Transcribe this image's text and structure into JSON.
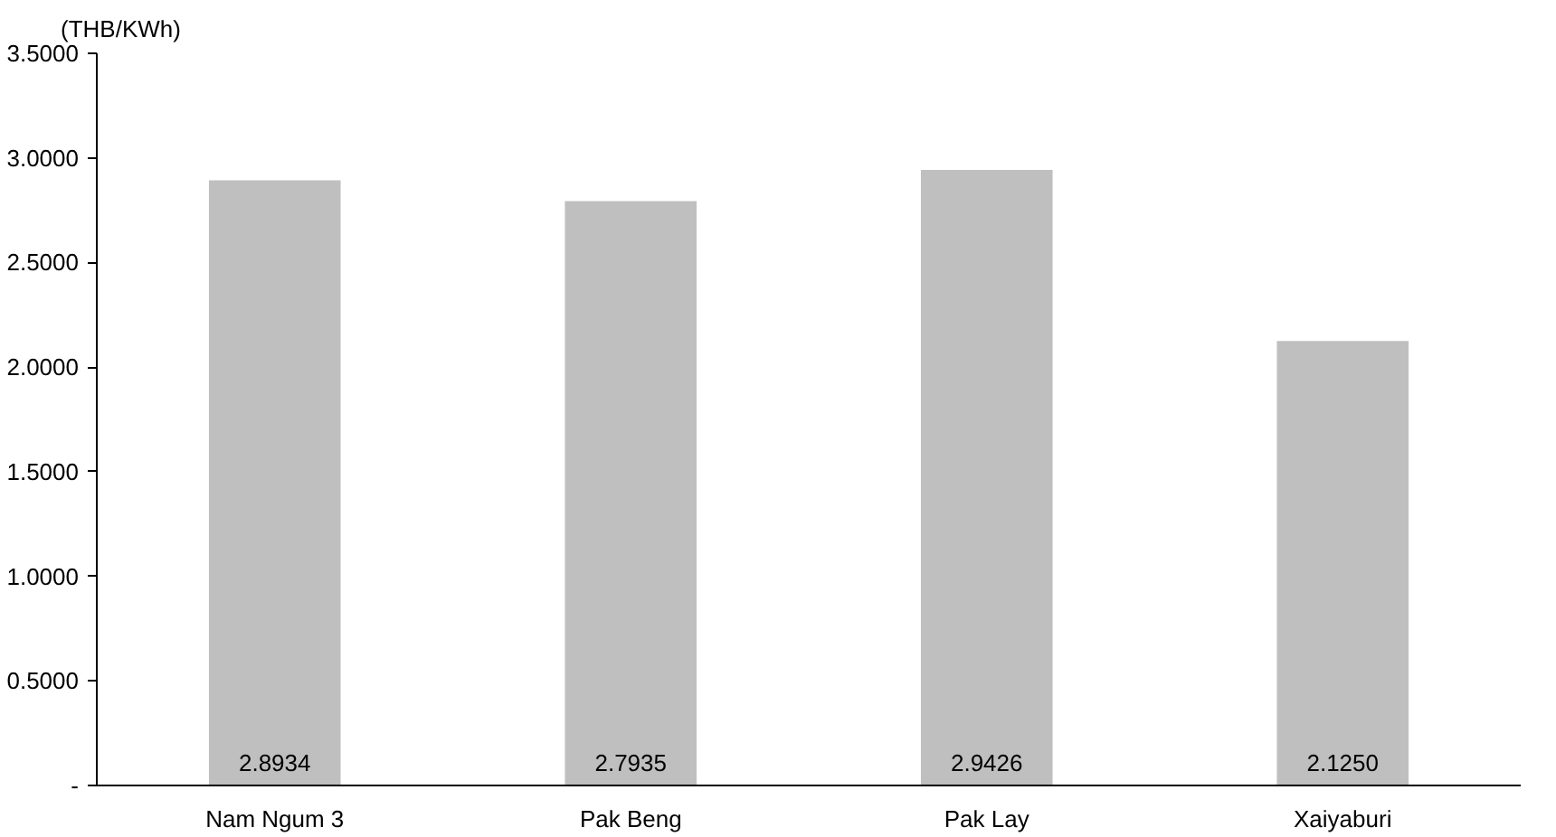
{
  "chart_data": {
    "type": "bar",
    "ylabel": "(THB/KWh)",
    "categories": [
      "Nam Ngum 3",
      "Pak Beng",
      "Pak Lay",
      "Xaiyaburi"
    ],
    "values": [
      2.8934,
      2.7935,
      2.9426,
      2.125
    ],
    "value_labels": [
      "2.8934",
      "2.7935",
      "2.9426",
      "2.1250"
    ],
    "color": "#bfbfbf",
    "ylim": [
      0,
      3.5
    ],
    "yticks": [
      {
        "value": 0,
        "label": "-"
      },
      {
        "value": 0.5,
        "label": "0.5000"
      },
      {
        "value": 1,
        "label": "1.0000"
      },
      {
        "value": 1.5,
        "label": "1.5000"
      },
      {
        "value": 2,
        "label": "2.0000"
      },
      {
        "value": 2.5,
        "label": "2.5000"
      },
      {
        "value": 3,
        "label": "3.0000"
      },
      {
        "value": 3.5,
        "label": "3.5000"
      }
    ],
    "grid": false
  }
}
